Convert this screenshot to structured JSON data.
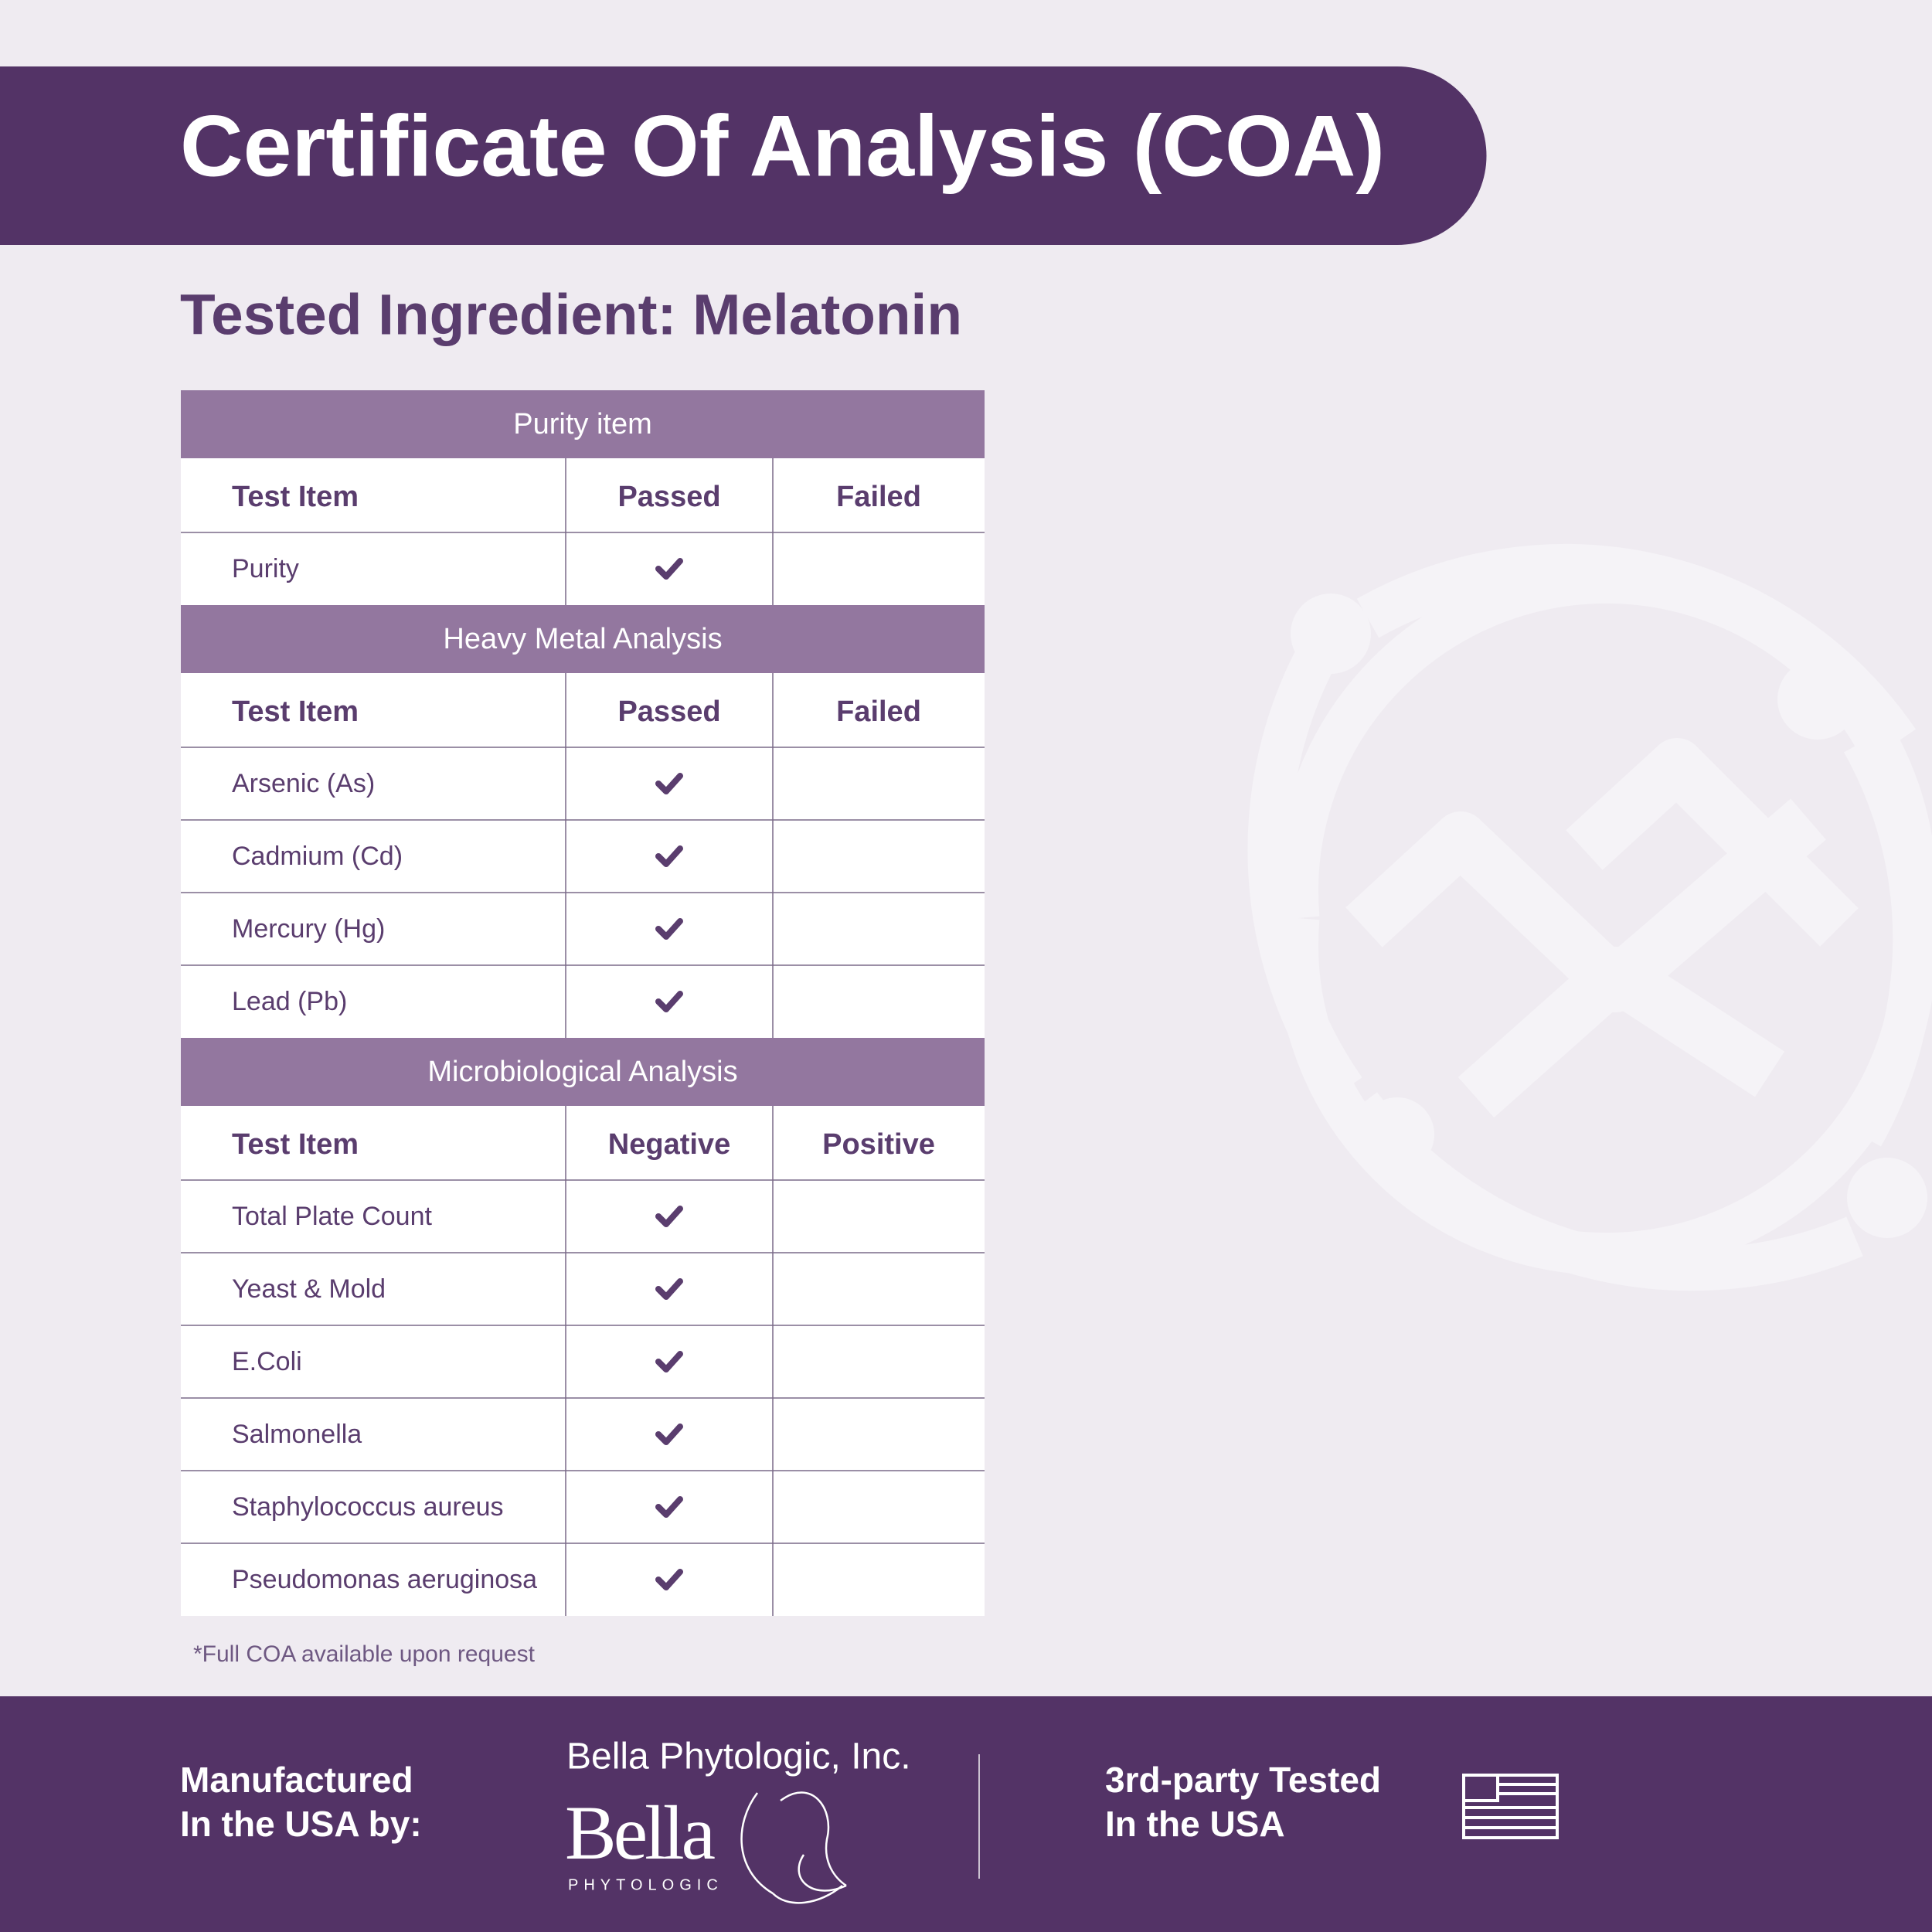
{
  "header": {
    "title": "Certificate Of Analysis (COA)"
  },
  "subtitle": "Tested Ingredient: Melatonin",
  "sections": [
    {
      "title": "Purity item",
      "columns": [
        "Test Item",
        "Passed",
        "Failed"
      ],
      "rows": [
        "Purity"
      ]
    },
    {
      "title": "Heavy Metal Analysis",
      "columns": [
        "Test Item",
        "Passed",
        "Failed"
      ],
      "rows": [
        "Arsenic (As)",
        "Cadmium (Cd)",
        "Mercury (Hg)",
        "Lead (Pb)"
      ]
    },
    {
      "title": "Microbiological Analysis",
      "columns": [
        "Test Item",
        "Negative",
        "Positive"
      ],
      "rows": [
        "Total Plate Count",
        "Yeast & Mold",
        "E.Coli",
        "Salmonella",
        "Staphylococcus aureus",
        "Pseudomonas aeruginosa"
      ]
    }
  ],
  "footnote": "*Full COA available upon request",
  "footer": {
    "manufactured": [
      "Manufactured",
      "In the USA by:"
    ],
    "company": "Bella Phytologic, Inc.",
    "logo_name": "Bella",
    "logo_sub": "PHYTOLOGIC",
    "tested": [
      "3rd-party Tested",
      "In the USA"
    ]
  }
}
